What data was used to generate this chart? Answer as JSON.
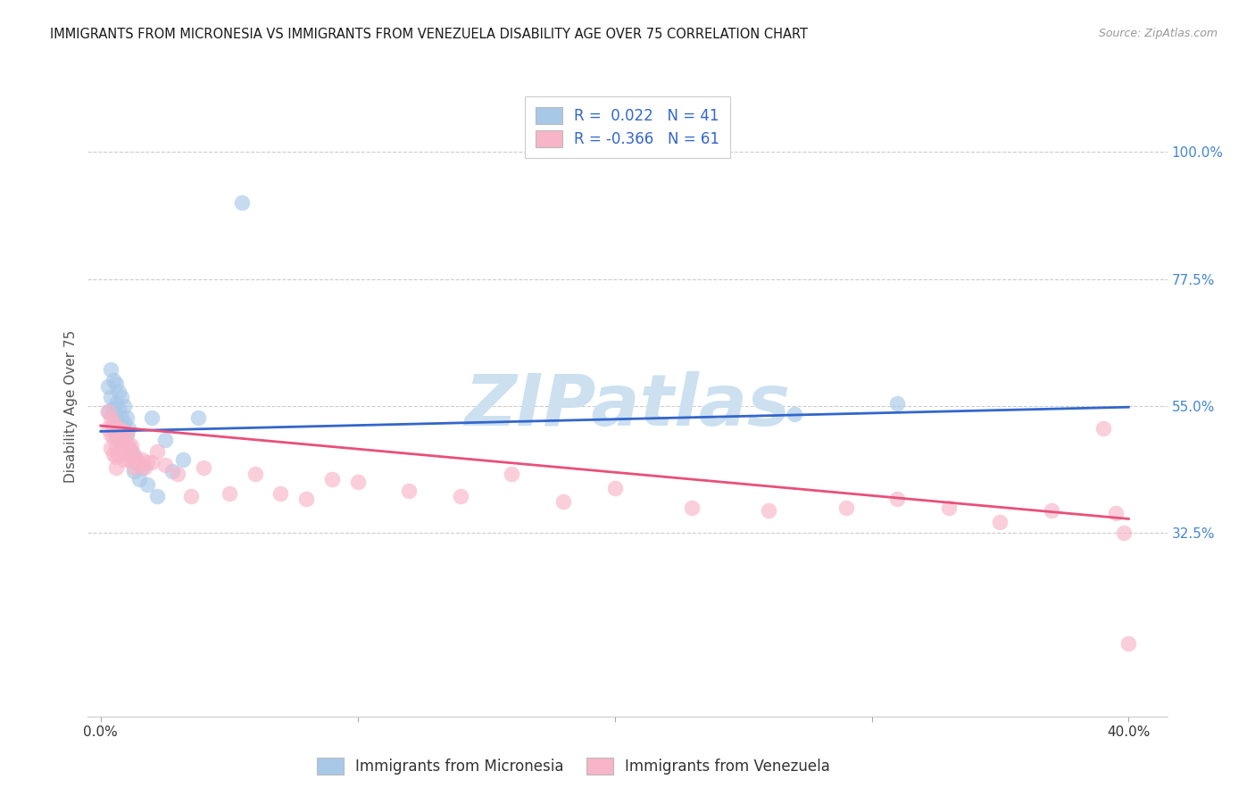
{
  "title": "IMMIGRANTS FROM MICRONESIA VS IMMIGRANTS FROM VENEZUELA DISABILITY AGE OVER 75 CORRELATION CHART",
  "source": "Source: ZipAtlas.com",
  "ylabel": "Disability Age Over 75",
  "xlim": [
    -0.005,
    0.415
  ],
  "ylim": [
    0.0,
    1.1
  ],
  "xticks": [
    0.0,
    0.1,
    0.2,
    0.3,
    0.4
  ],
  "xticklabels": [
    "0.0%",
    "",
    "",
    "",
    "40.0%"
  ],
  "ytick_positions": [
    0.325,
    0.55,
    0.775,
    1.0
  ],
  "ytick_labels": [
    "32.5%",
    "55.0%",
    "77.5%",
    "100.0%"
  ],
  "legend_R1": " 0.022",
  "legend_N1": "41",
  "legend_R2": "-0.366",
  "legend_N2": "61",
  "blue_scatter_color": "#a8c8e8",
  "pink_scatter_color": "#f8b4c8",
  "blue_line_color": "#3366cc",
  "pink_line_color": "#e8507a",
  "blue_text_color": "#3366cc",
  "right_tick_color": "#4488cc",
  "watermark": "ZIPatlas",
  "watermark_color": "#cce0f0",
  "grid_color": "#cccccc",
  "bg_color": "#ffffff",
  "title_fontsize": 10.5,
  "axis_label_fontsize": 11,
  "tick_fontsize": 11,
  "legend_fontsize": 12,
  "micronesia_x": [
    0.003,
    0.003,
    0.004,
    0.004,
    0.005,
    0.005,
    0.005,
    0.006,
    0.006,
    0.006,
    0.006,
    0.007,
    0.007,
    0.007,
    0.007,
    0.008,
    0.008,
    0.008,
    0.009,
    0.009,
    0.009,
    0.01,
    0.01,
    0.011,
    0.011,
    0.012,
    0.013,
    0.013,
    0.014,
    0.015,
    0.016,
    0.018,
    0.02,
    0.022,
    0.025,
    0.028,
    0.032,
    0.038,
    0.055,
    0.27,
    0.31
  ],
  "micronesia_y": [
    0.585,
    0.54,
    0.615,
    0.565,
    0.595,
    0.545,
    0.51,
    0.59,
    0.555,
    0.525,
    0.495,
    0.575,
    0.545,
    0.515,
    0.49,
    0.565,
    0.53,
    0.495,
    0.55,
    0.52,
    0.49,
    0.53,
    0.5,
    0.51,
    0.475,
    0.47,
    0.46,
    0.435,
    0.45,
    0.42,
    0.44,
    0.41,
    0.53,
    0.39,
    0.49,
    0.435,
    0.455,
    0.53,
    0.91,
    0.535,
    0.555
  ],
  "venezuela_x": [
    0.003,
    0.003,
    0.004,
    0.004,
    0.004,
    0.005,
    0.005,
    0.005,
    0.006,
    0.006,
    0.006,
    0.006,
    0.007,
    0.007,
    0.007,
    0.008,
    0.008,
    0.009,
    0.009,
    0.009,
    0.01,
    0.01,
    0.011,
    0.011,
    0.012,
    0.012,
    0.013,
    0.013,
    0.014,
    0.015,
    0.016,
    0.017,
    0.018,
    0.02,
    0.022,
    0.025,
    0.03,
    0.035,
    0.04,
    0.05,
    0.06,
    0.07,
    0.08,
    0.09,
    0.1,
    0.12,
    0.14,
    0.16,
    0.18,
    0.2,
    0.23,
    0.26,
    0.29,
    0.31,
    0.33,
    0.35,
    0.37,
    0.39,
    0.395,
    0.398,
    0.4
  ],
  "venezuela_y": [
    0.54,
    0.51,
    0.53,
    0.5,
    0.475,
    0.52,
    0.495,
    0.465,
    0.51,
    0.48,
    0.46,
    0.44,
    0.51,
    0.49,
    0.465,
    0.5,
    0.47,
    0.505,
    0.48,
    0.455,
    0.5,
    0.47,
    0.48,
    0.455,
    0.48,
    0.455,
    0.465,
    0.44,
    0.455,
    0.445,
    0.455,
    0.44,
    0.45,
    0.45,
    0.47,
    0.445,
    0.43,
    0.39,
    0.44,
    0.395,
    0.43,
    0.395,
    0.385,
    0.42,
    0.415,
    0.4,
    0.39,
    0.43,
    0.38,
    0.405,
    0.37,
    0.365,
    0.37,
    0.385,
    0.37,
    0.345,
    0.365,
    0.51,
    0.36,
    0.325,
    0.13
  ],
  "blue_line_x0": 0.0,
  "blue_line_y0": 0.505,
  "blue_line_x1": 0.4,
  "blue_line_y1": 0.548,
  "pink_line_x0": 0.0,
  "pink_line_y0": 0.515,
  "pink_line_x1": 0.4,
  "pink_line_y1": 0.35
}
